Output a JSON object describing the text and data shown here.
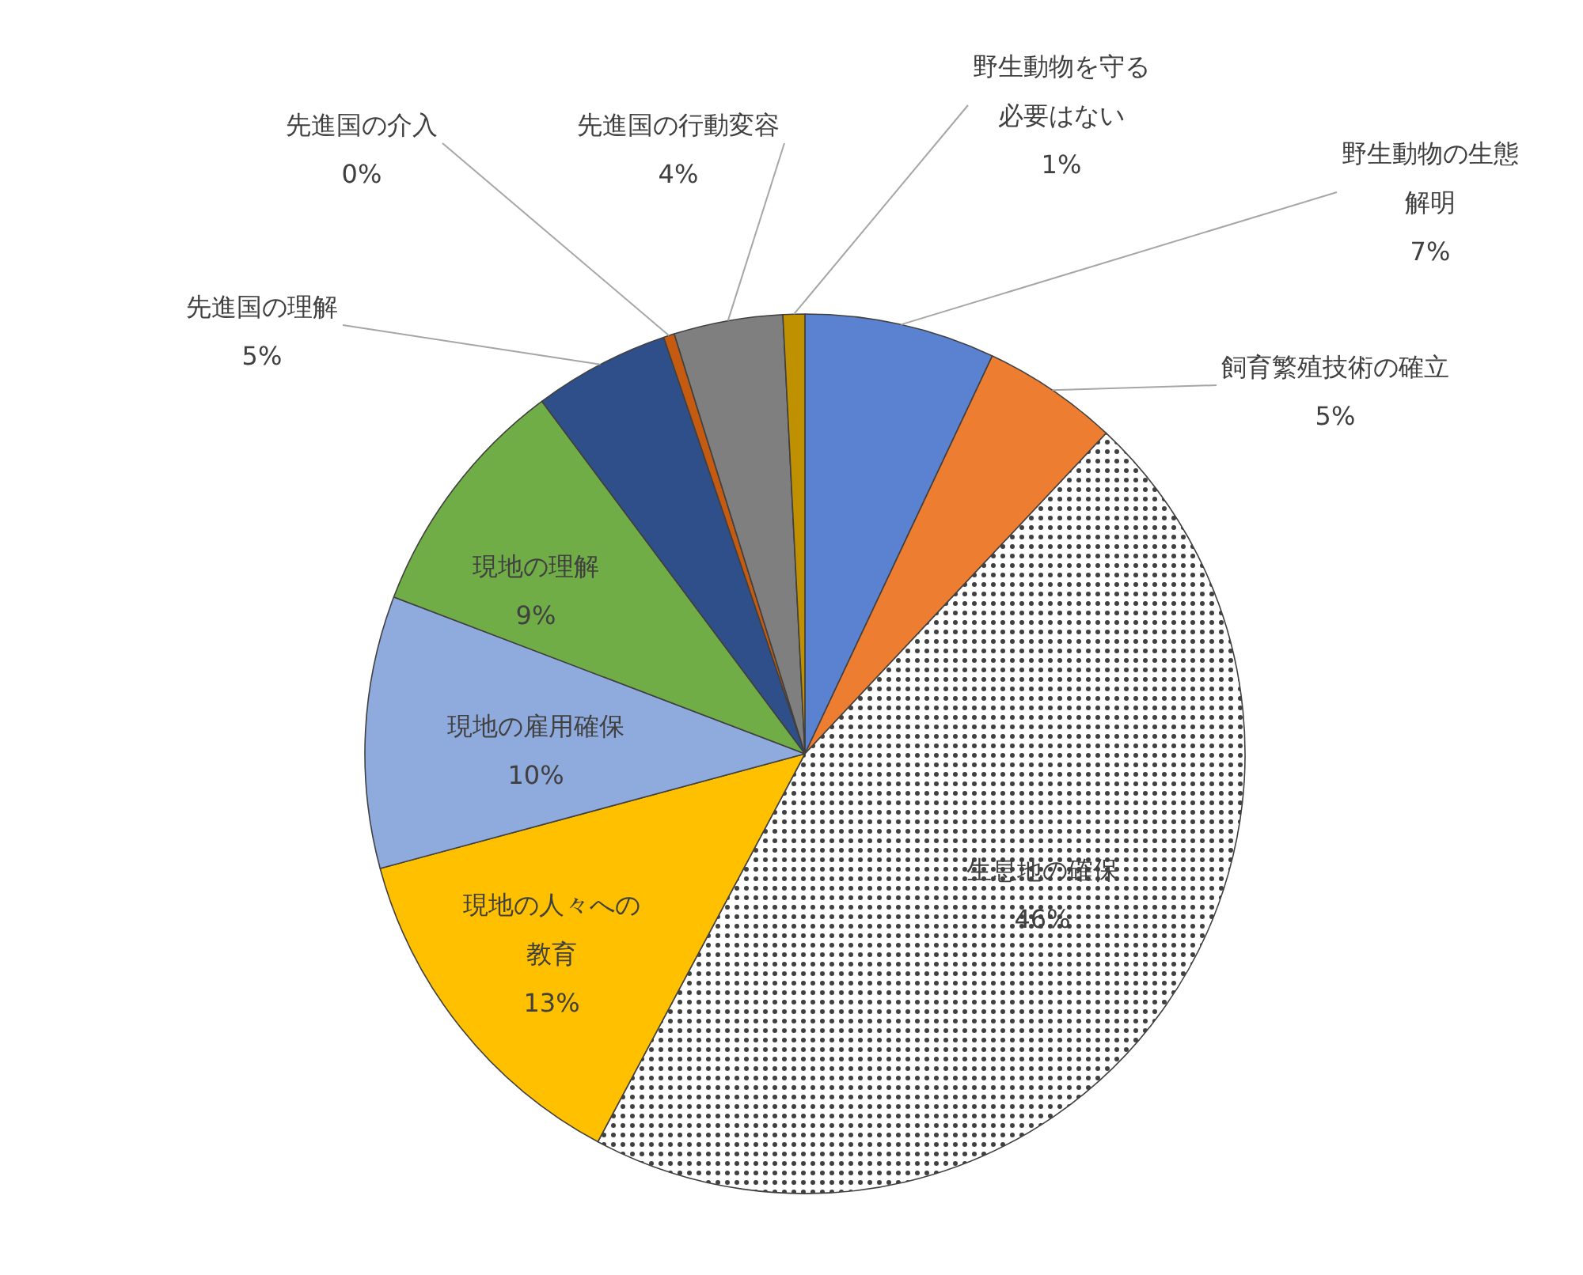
{
  "chart_data": {
    "type": "pie",
    "categories": [
      "野生動物の生態解明",
      "飼育繁殖技術の確立",
      "生息地の確保",
      "現地の人々への教育",
      "現地の雇用確保",
      "現地の理解",
      "先進国の理解",
      "先進国の介入",
      "先進国の行動変容",
      "野生動物を守る必要はない"
    ],
    "values": [
      7,
      5,
      45.8,
      13,
      10,
      9,
      5,
      0.4,
      4,
      0.8
    ],
    "value_labels": [
      "7%",
      "5%",
      "46%",
      "13%",
      "10%",
      "9%",
      "5%",
      "0%",
      "4%",
      "1%"
    ],
    "colors": [
      "#5b82d0",
      "#ed7d31",
      "#ffffff",
      "#ffc000",
      "#8faadc",
      "#70ad47",
      "#2e4f8a",
      "#c55a11",
      "#7f7f7f",
      "#bf9000"
    ]
  }
}
